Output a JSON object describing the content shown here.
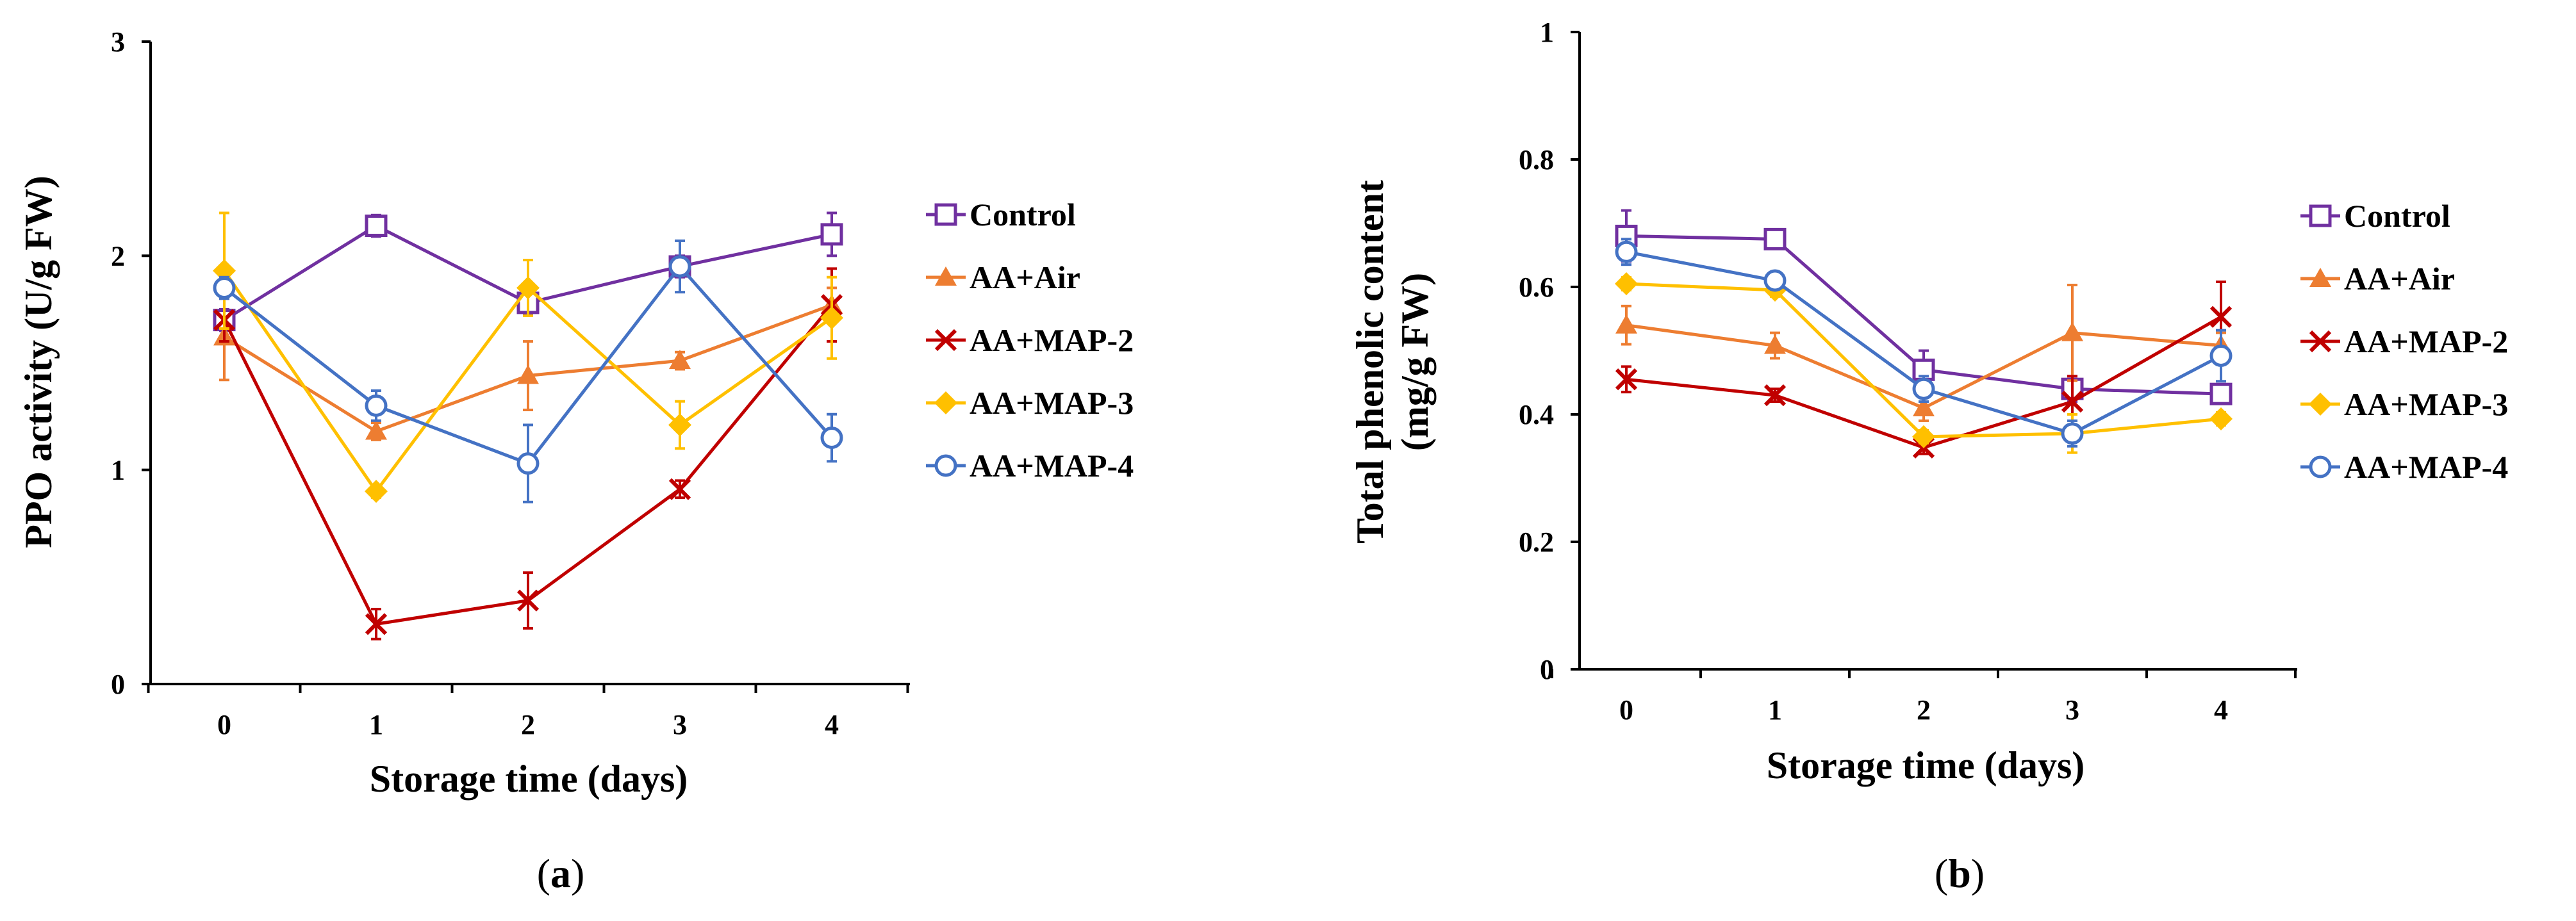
{
  "chart_data": [
    {
      "type": "line",
      "panel_label": "a",
      "title": "",
      "xlabel": "Storage time (days)",
      "ylabel": "PPO activity (U/g FW)",
      "x": [
        0,
        1,
        2,
        3,
        4
      ],
      "xticks": [
        "0",
        "1",
        "2",
        "3",
        "4"
      ],
      "ylim": [
        0,
        3
      ],
      "yticks": [
        "0",
        "1",
        "2",
        "3"
      ],
      "legend_position": "right",
      "series": [
        {
          "name": "Control",
          "marker": "open-square",
          "color": "#7030A0",
          "values": [
            1.7,
            2.14,
            1.78,
            1.95,
            2.1
          ],
          "errors": [
            0.05,
            0.05,
            0.05,
            0.05,
            0.1
          ]
        },
        {
          "name": "AA+Air",
          "marker": "triangle",
          "color": "#ED7D31",
          "values": [
            1.62,
            1.18,
            1.44,
            1.51,
            1.77
          ],
          "errors": [
            0.2,
            0.04,
            0.16,
            0.04,
            0.08
          ]
        },
        {
          "name": "AA+MAP-2",
          "marker": "x",
          "color": "#C00000",
          "values": [
            1.7,
            0.28,
            0.39,
            0.91,
            1.77
          ],
          "errors": [
            0.1,
            0.07,
            0.13,
            0.04,
            0.17
          ]
        },
        {
          "name": "AA+MAP-3",
          "marker": "diamond",
          "color": "#FFC000",
          "values": [
            1.93,
            0.9,
            1.85,
            1.21,
            1.71
          ],
          "errors": [
            0.27,
            0.03,
            0.13,
            0.11,
            0.19
          ]
        },
        {
          "name": "AA+MAP-4",
          "marker": "open-circle",
          "color": "#4472C4",
          "values": [
            1.85,
            1.3,
            1.03,
            1.95,
            1.15
          ],
          "errors": [
            0.05,
            0.07,
            0.18,
            0.12,
            0.11
          ]
        }
      ]
    },
    {
      "type": "line",
      "panel_label": "b",
      "title": "",
      "xlabel": "Storage time (days)",
      "ylabel_line1": "Total phenolic content",
      "ylabel_line2": "(mg/g FW)",
      "x": [
        0,
        1,
        2,
        3,
        4
      ],
      "xticks": [
        "0",
        "1",
        "2",
        "3",
        "4"
      ],
      "ylim": [
        0,
        1
      ],
      "yticks": [
        "0",
        "0.2",
        "0.4",
        "0.6",
        "0.8",
        "1"
      ],
      "legend_position": "right",
      "series": [
        {
          "name": "Control",
          "marker": "open-square",
          "color": "#7030A0",
          "values": [
            0.68,
            0.675,
            0.47,
            0.44,
            0.432
          ],
          "errors": [
            0.04,
            0.01,
            0.03,
            0.02,
            0.01
          ]
        },
        {
          "name": "AA+Air",
          "marker": "triangle",
          "color": "#ED7D31",
          "values": [
            0.54,
            0.508,
            0.41,
            0.528,
            0.508
          ],
          "errors": [
            0.03,
            0.02,
            0.02,
            0.075,
            0.02
          ]
        },
        {
          "name": "AA+MAP-2",
          "marker": "x",
          "color": "#C00000",
          "values": [
            0.455,
            0.43,
            0.348,
            0.42,
            0.553
          ],
          "errors": [
            0.02,
            0.01,
            0.01,
            0.04,
            0.055
          ]
        },
        {
          "name": "AA+MAP-3",
          "marker": "diamond",
          "color": "#FFC000",
          "values": [
            0.605,
            0.595,
            0.365,
            0.37,
            0.393
          ],
          "errors": [
            0.01,
            0.01,
            0.01,
            0.03,
            0.01
          ]
        },
        {
          "name": "AA+MAP-4",
          "marker": "open-circle",
          "color": "#4472C4",
          "values": [
            0.655,
            0.61,
            0.44,
            0.37,
            0.492
          ],
          "errors": [
            0.02,
            0.01,
            0.02,
            0.02,
            0.04
          ]
        }
      ]
    }
  ]
}
